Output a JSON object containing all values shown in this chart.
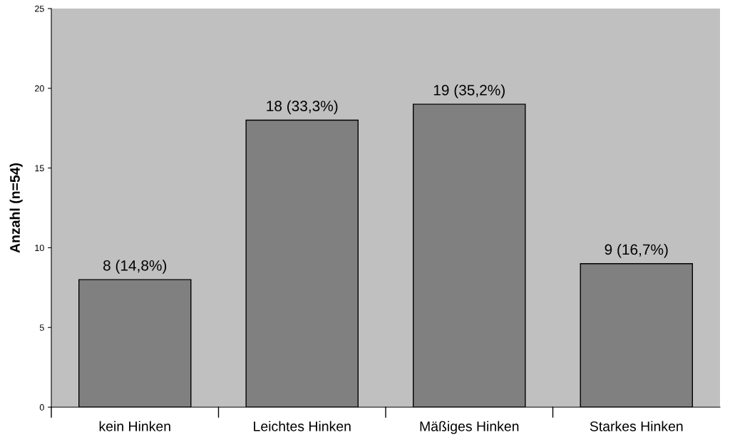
{
  "chart_data": {
    "type": "bar",
    "ylabel": "Anzahl (n=54)",
    "categories": [
      "kein Hinken",
      "Leichtes Hinken",
      "Mäßiges Hinken",
      "Starkes Hinken"
    ],
    "values": [
      8,
      18,
      19,
      9
    ],
    "value_labels": [
      "8 (14,8%)",
      "18 (33,3%)",
      "19 (35,2%)",
      "9 (16,7%)"
    ],
    "color": "#808080",
    "ylim": [
      0,
      25
    ],
    "yticks": [
      0,
      5,
      10,
      15,
      20,
      25
    ],
    "grid": false
  }
}
